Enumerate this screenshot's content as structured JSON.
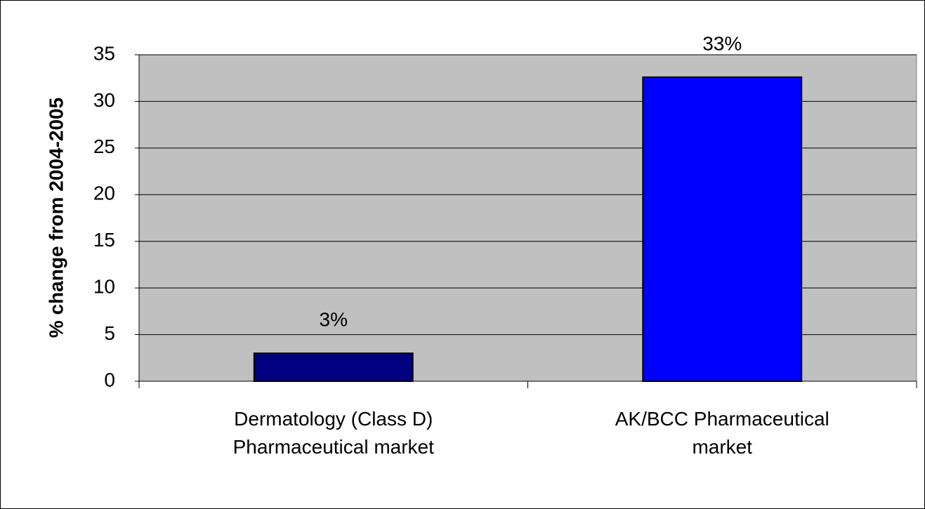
{
  "chart_data": {
    "type": "bar",
    "y_label": "% change  from 2004-2005",
    "categories": [
      "Dermatology (Class D) Pharmaceutical market",
      "AK/BCC Pharmaceutical market"
    ],
    "values": [
      3,
      32.6
    ],
    "value_labels": [
      "3%",
      "33%"
    ],
    "colors": [
      "#000080",
      "#0000ff"
    ],
    "ylim": [
      0,
      35
    ],
    "yticks": [
      0,
      5,
      10,
      15,
      20,
      25,
      30,
      35
    ],
    "grid": true
  }
}
